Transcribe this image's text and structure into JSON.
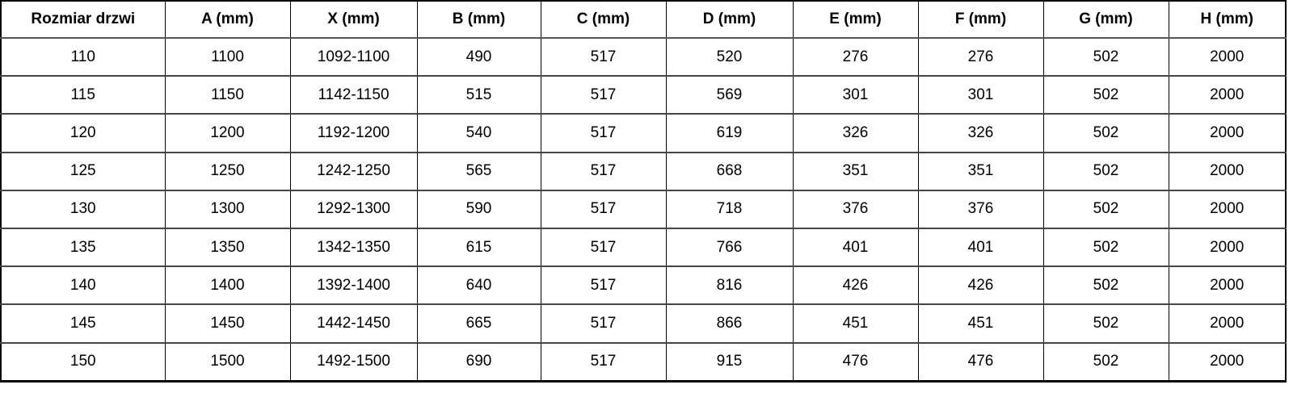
{
  "table": {
    "columns": [
      "Rozmiar drzwi",
      "A (mm)",
      "X (mm)",
      "B (mm)",
      "C (mm)",
      "D (mm)",
      "E (mm)",
      "F (mm)",
      "G (mm)",
      "H (mm)"
    ],
    "rows": [
      [
        "110",
        "1100",
        "1092-1100",
        "490",
        "517",
        "520",
        "276",
        "276",
        "502",
        "2000"
      ],
      [
        "115",
        "1150",
        "1142-1150",
        "515",
        "517",
        "569",
        "301",
        "301",
        "502",
        "2000"
      ],
      [
        "120",
        "1200",
        "1192-1200",
        "540",
        "517",
        "619",
        "326",
        "326",
        "502",
        "2000"
      ],
      [
        "125",
        "1250",
        "1242-1250",
        "565",
        "517",
        "668",
        "351",
        "351",
        "502",
        "2000"
      ],
      [
        "130",
        "1300",
        "1292-1300",
        "590",
        "517",
        "718",
        "376",
        "376",
        "502",
        "2000"
      ],
      [
        "135",
        "1350",
        "1342-1350",
        "615",
        "517",
        "766",
        "401",
        "401",
        "502",
        "2000"
      ],
      [
        "140",
        "1400",
        "1392-1400",
        "640",
        "517",
        "816",
        "426",
        "426",
        "502",
        "2000"
      ],
      [
        "145",
        "1450",
        "1442-1450",
        "665",
        "517",
        "866",
        "451",
        "451",
        "502",
        "2000"
      ],
      [
        "150",
        "1500",
        "1492-1500",
        "690",
        "517",
        "915",
        "476",
        "476",
        "502",
        "2000"
      ]
    ]
  },
  "colors": {
    "outer_border": "#000000",
    "vertical_border": "#000000",
    "horizontal_border": "#454545",
    "header_separator": "#555555",
    "text": "#000000",
    "background": "#ffffff"
  }
}
